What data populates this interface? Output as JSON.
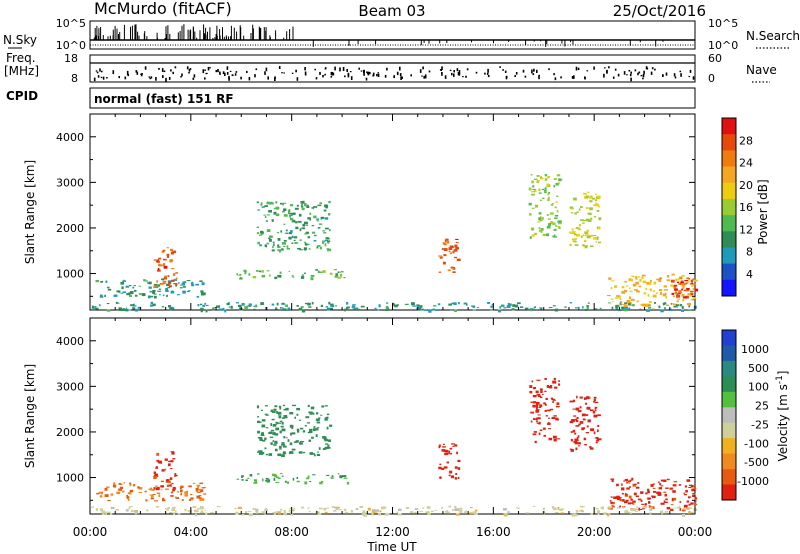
{
  "header": {
    "station": "McMurdo (fitACF)",
    "beam": "Beam 03",
    "date": "25/Oct/2016"
  },
  "left_labels": {
    "nsky": "N.Sky",
    "freq_line1": "Freq.",
    "freq_line2": "[MHz]",
    "cpid": "CPID"
  },
  "right_labels": {
    "nsearch": "N.Search",
    "nave": "Nave"
  },
  "nsky_panel": {
    "left_ticks": [
      "10^5",
      "10^0"
    ],
    "right_ticks": [
      "10^5",
      "10^0"
    ]
  },
  "freq_panel": {
    "left_ticks": [
      "18",
      "8"
    ],
    "right_ticks": [
      "60",
      "0"
    ]
  },
  "cpid_text": "normal (fast) 151 RF",
  "colors": {
    "power_scale": [
      "#1414ff",
      "#1e50c8",
      "#1f9ab8",
      "#2e8c55",
      "#4fba4f",
      "#99cc33",
      "#eecc11",
      "#f5a623",
      "#f07c0f",
      "#e64a0a",
      "#e01010"
    ],
    "velocity_scale": [
      "#2040d0",
      "#1e5aa8",
      "#2a8a80",
      "#2e8c55",
      "#55c040",
      "#bdbdbd",
      "#cfcf9a",
      "#f0b020",
      "#f08a20",
      "#e85a10",
      "#e02010"
    ]
  },
  "chart_data": [
    {
      "type": "heatmap",
      "name": "power",
      "ylabel": "Slant Range [km]",
      "yticks": [
        "1000",
        "2000",
        "3000",
        "4000"
      ],
      "ylim": [
        200,
        4500
      ],
      "xlim_hours": [
        0,
        24
      ],
      "colorbar": {
        "label": "Power [dB]",
        "ticks": [
          "4",
          "8",
          "12",
          "16",
          "20",
          "24",
          "28"
        ],
        "range": [
          0,
          30
        ]
      },
      "patches": [
        {
          "t0": 0.2,
          "t1": 4.5,
          "r0": 500,
          "r1": 900,
          "v": 8
        },
        {
          "t0": 2.5,
          "t1": 3.4,
          "r0": 700,
          "r1": 1600,
          "v": 26
        },
        {
          "t0": 5.8,
          "t1": 10.2,
          "r0": 900,
          "r1": 1100,
          "v": 12
        },
        {
          "t0": 6.6,
          "t1": 9.5,
          "r0": 1500,
          "r1": 2600,
          "v": 10
        },
        {
          "t0": 13.8,
          "t1": 14.6,
          "r0": 1000,
          "r1": 1800,
          "v": 26
        },
        {
          "t0": 17.4,
          "t1": 18.6,
          "r0": 1800,
          "r1": 3200,
          "v": 14
        },
        {
          "t0": 19.0,
          "t1": 20.2,
          "r0": 1600,
          "r1": 2800,
          "v": 16
        },
        {
          "t0": 20.5,
          "t1": 24.0,
          "r0": 300,
          "r1": 1000,
          "v": 20
        },
        {
          "t0": 23.0,
          "t1": 24.0,
          "r0": 500,
          "r1": 900,
          "v": 28
        },
        {
          "t0": 0.0,
          "t1": 24.0,
          "r0": 200,
          "r1": 380,
          "v": 8
        }
      ]
    },
    {
      "type": "heatmap",
      "name": "velocity",
      "ylabel": "Slant Range [km]",
      "yticks": [
        "1000",
        "2000",
        "3000",
        "4000"
      ],
      "ylim": [
        200,
        4500
      ],
      "xlim_hours": [
        0,
        24
      ],
      "xlabel": "Time UT",
      "xticks": [
        "00:00",
        "04:00",
        "08:00",
        "12:00",
        "16:00",
        "20:00",
        "00:00"
      ],
      "colorbar": {
        "label": "Velocity [m s^-1]",
        "ticks": [
          "1000",
          "500",
          "100",
          "25",
          "-25",
          "-100",
          "-500",
          "-1000"
        ]
      },
      "patches": [
        {
          "t0": 0.2,
          "t1": 4.5,
          "r0": 500,
          "r1": 900,
          "v": -100
        },
        {
          "t0": 2.5,
          "t1": 3.4,
          "r0": 700,
          "r1": 1600,
          "v": -300
        },
        {
          "t0": 5.8,
          "t1": 10.2,
          "r0": 900,
          "r1": 1100,
          "v": 100
        },
        {
          "t0": 6.6,
          "t1": 9.5,
          "r0": 1500,
          "r1": 2600,
          "v": 150
        },
        {
          "t0": 13.8,
          "t1": 14.6,
          "r0": 1000,
          "r1": 1800,
          "v": -800
        },
        {
          "t0": 17.4,
          "t1": 18.6,
          "r0": 1800,
          "r1": 3200,
          "v": -600
        },
        {
          "t0": 19.0,
          "t1": 20.2,
          "r0": 1600,
          "r1": 2800,
          "v": -500
        },
        {
          "t0": 20.5,
          "t1": 24.0,
          "r0": 300,
          "r1": 1000,
          "v": -300
        },
        {
          "t0": 0.0,
          "t1": 24.0,
          "r0": 200,
          "r1": 380,
          "v": 0
        }
      ]
    }
  ]
}
